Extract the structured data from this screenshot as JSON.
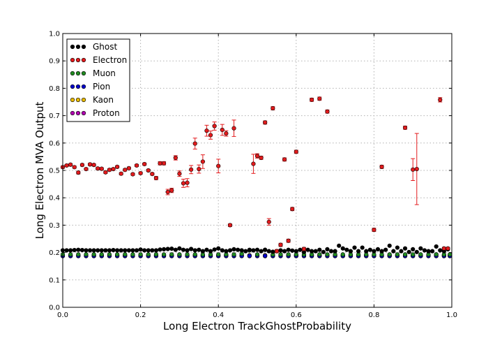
{
  "chart_data": {
    "type": "scatter",
    "title": "",
    "xlabel": "Long Electron TrackGhostProbability",
    "ylabel": "Long Electron MVA Output",
    "xlim": [
      0.0,
      1.0
    ],
    "ylim": [
      0.0,
      1.0
    ],
    "xticks": [
      "0.0",
      "0.2",
      "0.4",
      "0.6",
      "0.8",
      "1.0"
    ],
    "yticks": [
      "0.0",
      "0.1",
      "0.2",
      "0.3",
      "0.4",
      "0.5",
      "0.6",
      "0.7",
      "0.8",
      "0.9",
      "1.0"
    ],
    "grid": true,
    "legend_position": "top-left",
    "series": [
      {
        "name": "Ghost",
        "color": "#000000",
        "x": [
          0.0,
          0.01,
          0.02,
          0.03,
          0.04,
          0.05,
          0.06,
          0.07,
          0.08,
          0.09,
          0.1,
          0.11,
          0.12,
          0.13,
          0.14,
          0.15,
          0.16,
          0.17,
          0.18,
          0.19,
          0.2,
          0.21,
          0.22,
          0.23,
          0.24,
          0.25,
          0.26,
          0.27,
          0.28,
          0.29,
          0.3,
          0.31,
          0.32,
          0.33,
          0.34,
          0.35,
          0.36,
          0.37,
          0.38,
          0.39,
          0.4,
          0.41,
          0.42,
          0.43,
          0.44,
          0.45,
          0.46,
          0.47,
          0.48,
          0.49,
          0.5,
          0.51,
          0.52,
          0.53,
          0.54,
          0.55,
          0.56,
          0.57,
          0.58,
          0.59,
          0.6,
          0.61,
          0.62,
          0.63,
          0.64,
          0.65,
          0.66,
          0.67,
          0.68,
          0.69,
          0.7,
          0.71,
          0.72,
          0.73,
          0.74,
          0.75,
          0.76,
          0.77,
          0.78,
          0.79,
          0.8,
          0.81,
          0.82,
          0.83,
          0.84,
          0.85,
          0.86,
          0.87,
          0.88,
          0.89,
          0.9,
          0.91,
          0.92,
          0.93,
          0.94,
          0.95,
          0.96,
          0.97,
          0.98,
          0.99
        ],
        "y": [
          0.208,
          0.208,
          0.208,
          0.209,
          0.21,
          0.209,
          0.208,
          0.208,
          0.208,
          0.208,
          0.208,
          0.208,
          0.208,
          0.209,
          0.208,
          0.208,
          0.208,
          0.208,
          0.208,
          0.208,
          0.211,
          0.208,
          0.208,
          0.208,
          0.208,
          0.211,
          0.212,
          0.213,
          0.214,
          0.21,
          0.215,
          0.21,
          0.208,
          0.213,
          0.208,
          0.21,
          0.205,
          0.21,
          0.205,
          0.211,
          0.215,
          0.208,
          0.205,
          0.208,
          0.212,
          0.21,
          0.208,
          0.205,
          0.21,
          0.208,
          0.21,
          0.205,
          0.21,
          0.205,
          0.203,
          0.205,
          0.208,
          0.205,
          0.21,
          0.207,
          0.205,
          0.21,
          0.202,
          0.21,
          0.205,
          0.205,
          0.21,
          0.202,
          0.212,
          0.205,
          0.205,
          0.225,
          0.215,
          0.21,
          0.205,
          0.218,
          0.205,
          0.218,
          0.205,
          0.21,
          0.205,
          0.212,
          0.205,
          0.21,
          0.225,
          0.205,
          0.218,
          0.205,
          0.215,
          0.202,
          0.212,
          0.202,
          0.215,
          0.208,
          0.205,
          0.205,
          0.222,
          0.208,
          0.205,
          0.212
        ],
        "yerr": [
          0.002,
          0.002,
          0.002,
          0.002,
          0.002,
          0.002,
          0.002,
          0.002,
          0.002,
          0.002,
          0.002,
          0.002,
          0.002,
          0.002,
          0.002,
          0.002,
          0.002,
          0.002,
          0.002,
          0.002,
          0.002,
          0.002,
          0.002,
          0.002,
          0.002,
          0.002,
          0.002,
          0.002,
          0.002,
          0.002,
          0.002,
          0.002,
          0.002,
          0.002,
          0.002,
          0.002,
          0.002,
          0.002,
          0.002,
          0.002,
          0.002,
          0.002,
          0.002,
          0.002,
          0.002,
          0.002,
          0.002,
          0.002,
          0.002,
          0.002,
          0.002,
          0.002,
          0.002,
          0.002,
          0.002,
          0.002,
          0.002,
          0.002,
          0.002,
          0.002,
          0.002,
          0.002,
          0.002,
          0.002,
          0.002,
          0.002,
          0.002,
          0.002,
          0.002,
          0.002,
          0.002,
          0.002,
          0.002,
          0.002,
          0.002,
          0.002,
          0.002,
          0.002,
          0.002,
          0.002,
          0.002,
          0.002,
          0.002,
          0.002,
          0.002,
          0.002,
          0.002,
          0.002,
          0.002,
          0.002,
          0.002,
          0.002,
          0.002,
          0.002,
          0.002,
          0.002,
          0.002,
          0.002,
          0.002,
          0.002
        ]
      },
      {
        "name": "Electron",
        "color": "#e31a1c",
        "x": [
          0.0,
          0.01,
          0.02,
          0.03,
          0.04,
          0.05,
          0.06,
          0.07,
          0.08,
          0.09,
          0.1,
          0.11,
          0.12,
          0.13,
          0.14,
          0.15,
          0.16,
          0.17,
          0.18,
          0.19,
          0.2,
          0.21,
          0.22,
          0.23,
          0.24,
          0.25,
          0.26,
          0.27,
          0.28,
          0.29,
          0.3,
          0.31,
          0.32,
          0.33,
          0.34,
          0.35,
          0.36,
          0.37,
          0.38,
          0.39,
          0.4,
          0.41,
          0.42,
          0.43,
          0.44,
          0.49,
          0.5,
          0.51,
          0.52,
          0.53,
          0.54,
          0.55,
          0.56,
          0.57,
          0.58,
          0.59,
          0.6,
          0.62,
          0.64,
          0.66,
          0.68,
          0.8,
          0.82,
          0.88,
          0.9,
          0.91,
          0.97,
          0.98,
          0.99
        ],
        "y": [
          0.512,
          0.518,
          0.521,
          0.512,
          0.492,
          0.52,
          0.505,
          0.522,
          0.52,
          0.507,
          0.506,
          0.493,
          0.502,
          0.505,
          0.513,
          0.488,
          0.502,
          0.508,
          0.486,
          0.518,
          0.49,
          0.523,
          0.5,
          0.487,
          0.472,
          0.526,
          0.526,
          0.421,
          0.427,
          0.546,
          0.488,
          0.453,
          0.455,
          0.503,
          0.598,
          0.505,
          0.532,
          0.645,
          0.629,
          0.662,
          0.516,
          0.648,
          0.635,
          0.3,
          0.654,
          0.524,
          0.553,
          0.546,
          0.675,
          0.312,
          0.727,
          0.205,
          0.228,
          0.54,
          0.243,
          0.359,
          0.568,
          0.213,
          0.758,
          0.762,
          0.715,
          0.283,
          0.513,
          0.656,
          0.503,
          0.505,
          0.758,
          0.215,
          0.215
        ],
        "yerr": [
          0.004,
          0.004,
          0.004,
          0.004,
          0.005,
          0.004,
          0.004,
          0.004,
          0.004,
          0.004,
          0.004,
          0.004,
          0.004,
          0.004,
          0.004,
          0.004,
          0.004,
          0.004,
          0.004,
          0.004,
          0.004,
          0.004,
          0.004,
          0.004,
          0.006,
          0.006,
          0.006,
          0.01,
          0.008,
          0.008,
          0.01,
          0.015,
          0.015,
          0.015,
          0.02,
          0.015,
          0.025,
          0.02,
          0.015,
          0.015,
          0.025,
          0.02,
          0.01,
          0.005,
          0.03,
          0.035,
          0.008,
          0.006,
          0.006,
          0.012,
          0.006,
          0.006,
          0.006,
          0.006,
          0.006,
          0.006,
          0.006,
          0.006,
          0.006,
          0.006,
          0.006,
          0.006,
          0.006,
          0.006,
          0.04,
          0.13,
          0.008,
          0.004,
          0.004
        ]
      },
      {
        "name": "Muon",
        "color": "#228b22",
        "x": [
          0.0,
          0.02,
          0.04,
          0.06,
          0.08,
          0.1,
          0.12,
          0.14,
          0.16,
          0.18,
          0.2,
          0.22,
          0.24,
          0.26,
          0.28,
          0.3,
          0.32,
          0.34,
          0.36,
          0.38,
          0.4,
          0.42,
          0.44,
          0.46,
          0.48,
          0.5,
          0.52,
          0.54,
          0.56,
          0.58,
          0.6,
          0.62,
          0.64,
          0.66,
          0.68,
          0.7,
          0.72,
          0.74,
          0.76,
          0.78,
          0.8,
          0.82,
          0.84,
          0.86,
          0.88,
          0.9,
          0.92,
          0.94,
          0.96,
          0.98,
          0.995
        ],
        "y": [
          0.193,
          0.193,
          0.193,
          0.193,
          0.193,
          0.193,
          0.193,
          0.193,
          0.193,
          0.193,
          0.193,
          0.193,
          0.193,
          0.193,
          0.193,
          0.193,
          0.193,
          0.193,
          0.193,
          0.193,
          0.193,
          0.193,
          0.193,
          0.195,
          0.208,
          0.193,
          0.21,
          0.193,
          0.193,
          0.193,
          0.193,
          0.193,
          0.193,
          0.193,
          0.193,
          0.193,
          0.193,
          0.193,
          0.193,
          0.193,
          0.193,
          0.193,
          0.193,
          0.193,
          0.193,
          0.193,
          0.193,
          0.193,
          0.193,
          0.193,
          0.193
        ],
        "yerr": [
          0.001,
          0.001,
          0.001,
          0.001,
          0.001,
          0.001,
          0.001,
          0.001,
          0.001,
          0.001,
          0.001,
          0.001,
          0.001,
          0.001,
          0.001,
          0.001,
          0.001,
          0.001,
          0.001,
          0.001,
          0.001,
          0.001,
          0.001,
          0.001,
          0.001,
          0.001,
          0.001,
          0.001,
          0.001,
          0.001,
          0.001,
          0.001,
          0.001,
          0.001,
          0.001,
          0.001,
          0.001,
          0.001,
          0.001,
          0.001,
          0.001,
          0.001,
          0.001,
          0.001,
          0.001,
          0.001,
          0.001,
          0.001,
          0.001,
          0.001,
          0.001
        ]
      },
      {
        "name": "Pion",
        "color": "#0000cc",
        "x": [
          0.0,
          0.02,
          0.04,
          0.06,
          0.08,
          0.1,
          0.12,
          0.14,
          0.16,
          0.18,
          0.2,
          0.22,
          0.24,
          0.26,
          0.28,
          0.3,
          0.32,
          0.34,
          0.36,
          0.38,
          0.4,
          0.42,
          0.44,
          0.46,
          0.48,
          0.5,
          0.52,
          0.54,
          0.56,
          0.58,
          0.6,
          0.62,
          0.64,
          0.66,
          0.68,
          0.7,
          0.72,
          0.74,
          0.76,
          0.78,
          0.8,
          0.82,
          0.84,
          0.86,
          0.88,
          0.9,
          0.92,
          0.94,
          0.96,
          0.98,
          0.995
        ],
        "y": [
          0.188,
          0.188,
          0.188,
          0.188,
          0.188,
          0.188,
          0.188,
          0.188,
          0.188,
          0.188,
          0.188,
          0.188,
          0.188,
          0.188,
          0.188,
          0.188,
          0.188,
          0.188,
          0.188,
          0.188,
          0.188,
          0.188,
          0.188,
          0.188,
          0.188,
          0.188,
          0.188,
          0.188,
          0.188,
          0.188,
          0.188,
          0.188,
          0.188,
          0.188,
          0.188,
          0.188,
          0.188,
          0.188,
          0.188,
          0.188,
          0.188,
          0.188,
          0.188,
          0.188,
          0.188,
          0.188,
          0.188,
          0.188,
          0.188,
          0.188,
          0.188
        ],
        "yerr": [
          0.001,
          0.001,
          0.001,
          0.001,
          0.001,
          0.001,
          0.001,
          0.001,
          0.001,
          0.001,
          0.001,
          0.001,
          0.001,
          0.001,
          0.001,
          0.001,
          0.001,
          0.001,
          0.001,
          0.001,
          0.001,
          0.001,
          0.001,
          0.001,
          0.001,
          0.001,
          0.001,
          0.001,
          0.001,
          0.001,
          0.001,
          0.001,
          0.001,
          0.001,
          0.001,
          0.001,
          0.001,
          0.001,
          0.001,
          0.001,
          0.001,
          0.001,
          0.001,
          0.001,
          0.001,
          0.001,
          0.001,
          0.001,
          0.001,
          0.001,
          0.001
        ]
      },
      {
        "name": "Kaon",
        "color": "#e6b800",
        "x": [
          0.0,
          0.02,
          0.04,
          0.06,
          0.08,
          0.1,
          0.12,
          0.14,
          0.16,
          0.18,
          0.2,
          0.22,
          0.24,
          0.26,
          0.28,
          0.3,
          0.32,
          0.34,
          0.36,
          0.38,
          0.4,
          0.42,
          0.44,
          0.46,
          0.48,
          0.5,
          0.52,
          0.54,
          0.56,
          0.58,
          0.6,
          0.62,
          0.64,
          0.66,
          0.68,
          0.7,
          0.72,
          0.74,
          0.76,
          0.78,
          0.8,
          0.82,
          0.84,
          0.86,
          0.88,
          0.9,
          0.92,
          0.94,
          0.96,
          0.98,
          0.995
        ],
        "y": [
          0.19,
          0.19,
          0.19,
          0.19,
          0.19,
          0.19,
          0.19,
          0.19,
          0.19,
          0.19,
          0.19,
          0.19,
          0.19,
          0.19,
          0.19,
          0.19,
          0.19,
          0.19,
          0.19,
          0.19,
          0.19,
          0.19,
          0.19,
          0.19,
          0.19,
          0.19,
          0.19,
          0.19,
          0.19,
          0.19,
          0.19,
          0.19,
          0.19,
          0.19,
          0.19,
          0.19,
          0.19,
          0.19,
          0.19,
          0.19,
          0.19,
          0.19,
          0.19,
          0.19,
          0.19,
          0.19,
          0.19,
          0.19,
          0.193,
          0.19,
          0.19
        ],
        "yerr": [
          0.001,
          0.001,
          0.001,
          0.001,
          0.001,
          0.001,
          0.001,
          0.001,
          0.001,
          0.001,
          0.001,
          0.001,
          0.001,
          0.001,
          0.001,
          0.001,
          0.001,
          0.001,
          0.001,
          0.001,
          0.001,
          0.001,
          0.001,
          0.001,
          0.001,
          0.001,
          0.001,
          0.001,
          0.001,
          0.001,
          0.001,
          0.001,
          0.001,
          0.001,
          0.001,
          0.001,
          0.001,
          0.001,
          0.001,
          0.001,
          0.001,
          0.001,
          0.001,
          0.001,
          0.001,
          0.001,
          0.001,
          0.001,
          0.001,
          0.001,
          0.001
        ]
      },
      {
        "name": "Proton",
        "color": "#b000b0",
        "x": [
          0.0,
          0.02,
          0.04,
          0.06,
          0.08,
          0.1,
          0.12,
          0.14,
          0.16,
          0.18,
          0.2,
          0.22,
          0.24,
          0.26,
          0.28,
          0.3,
          0.32,
          0.34,
          0.36,
          0.38,
          0.4,
          0.42,
          0.44,
          0.46,
          0.48,
          0.5,
          0.52,
          0.54,
          0.56,
          0.58,
          0.6,
          0.62,
          0.64,
          0.66,
          0.68,
          0.7,
          0.72,
          0.74,
          0.76,
          0.78,
          0.8,
          0.82,
          0.84,
          0.86,
          0.88,
          0.9,
          0.92,
          0.94,
          0.96,
          0.98,
          0.995
        ],
        "y": [
          0.187,
          0.187,
          0.187,
          0.187,
          0.187,
          0.187,
          0.187,
          0.187,
          0.187,
          0.187,
          0.187,
          0.187,
          0.187,
          0.187,
          0.187,
          0.187,
          0.187,
          0.187,
          0.187,
          0.187,
          0.187,
          0.187,
          0.187,
          0.187,
          0.187,
          0.187,
          0.187,
          0.187,
          0.187,
          0.187,
          0.187,
          0.187,
          0.187,
          0.187,
          0.187,
          0.187,
          0.187,
          0.187,
          0.187,
          0.187,
          0.187,
          0.187,
          0.187,
          0.187,
          0.187,
          0.187,
          0.187,
          0.187,
          0.187,
          0.187,
          0.187
        ],
        "yerr": [
          0.001,
          0.001,
          0.001,
          0.001,
          0.001,
          0.001,
          0.001,
          0.001,
          0.001,
          0.001,
          0.001,
          0.001,
          0.001,
          0.001,
          0.001,
          0.001,
          0.001,
          0.001,
          0.001,
          0.001,
          0.001,
          0.001,
          0.001,
          0.001,
          0.001,
          0.001,
          0.001,
          0.001,
          0.001,
          0.001,
          0.001,
          0.001,
          0.001,
          0.001,
          0.001,
          0.001,
          0.001,
          0.001,
          0.001,
          0.001,
          0.001,
          0.001,
          0.001,
          0.001,
          0.001,
          0.001,
          0.001,
          0.001,
          0.001,
          0.001,
          0.001
        ]
      }
    ]
  }
}
